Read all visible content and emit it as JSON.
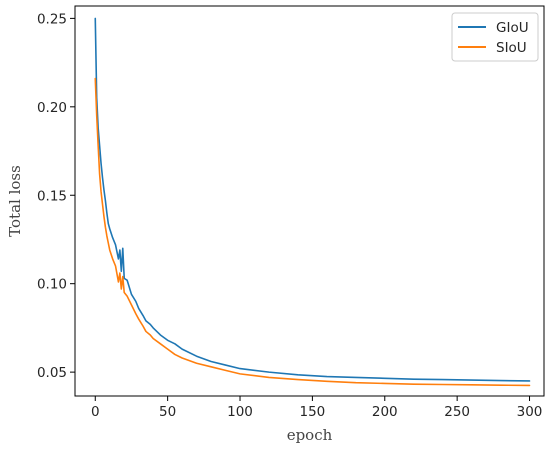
{
  "chart_data": {
    "type": "line",
    "title": "",
    "xlabel": "epoch",
    "ylabel": "Total loss",
    "xlim": [
      -14,
      310
    ],
    "ylim": [
      0.0365,
      0.257
    ],
    "x_ticks": [
      0,
      50,
      100,
      150,
      200,
      250,
      300
    ],
    "y_ticks": [
      0.05,
      0.1,
      0.15,
      0.2,
      0.25
    ],
    "x_tick_labels": [
      "0",
      "50",
      "100",
      "150",
      "200",
      "250",
      "300"
    ],
    "y_tick_labels": [
      "0.05",
      "0.10",
      "0.15",
      "0.20",
      "0.25"
    ],
    "grid": false,
    "legend_position": "top-right",
    "series": [
      {
        "name": "GIoU",
        "color": "#1f77b4",
        "x": [
          0,
          1,
          2,
          3,
          4,
          5,
          6,
          7,
          8,
          9,
          10,
          12,
          14,
          16,
          17,
          18,
          19,
          20,
          22,
          25,
          28,
          30,
          33,
          35,
          38,
          40,
          45,
          50,
          55,
          60,
          70,
          80,
          90,
          100,
          120,
          140,
          160,
          180,
          200,
          220,
          240,
          260,
          280,
          300
        ],
        "values": [
          0.25,
          0.205,
          0.188,
          0.178,
          0.168,
          0.16,
          0.153,
          0.147,
          0.14,
          0.134,
          0.131,
          0.126,
          0.122,
          0.114,
          0.119,
          0.107,
          0.12,
          0.103,
          0.102,
          0.094,
          0.09,
          0.086,
          0.082,
          0.079,
          0.077,
          0.075,
          0.071,
          0.068,
          0.066,
          0.063,
          0.059,
          0.056,
          0.054,
          0.052,
          0.05,
          0.0485,
          0.0475,
          0.047,
          0.0465,
          0.046,
          0.0458,
          0.0455,
          0.0452,
          0.045
        ]
      },
      {
        "name": "SIoU",
        "color": "#ff7f0e",
        "x": [
          0,
          1,
          2,
          3,
          4,
          5,
          6,
          7,
          8,
          9,
          10,
          12,
          14,
          16,
          17,
          18,
          19,
          20,
          22,
          25,
          28,
          30,
          33,
          35,
          38,
          40,
          45,
          50,
          55,
          60,
          70,
          80,
          90,
          100,
          120,
          140,
          160,
          180,
          200,
          220,
          240,
          260,
          280,
          300
        ],
        "values": [
          0.216,
          0.195,
          0.178,
          0.162,
          0.152,
          0.145,
          0.138,
          0.132,
          0.127,
          0.123,
          0.119,
          0.114,
          0.11,
          0.101,
          0.106,
          0.097,
          0.104,
          0.095,
          0.093,
          0.088,
          0.083,
          0.08,
          0.076,
          0.073,
          0.071,
          0.069,
          0.066,
          0.063,
          0.06,
          0.058,
          0.055,
          0.053,
          0.051,
          0.049,
          0.047,
          0.0458,
          0.0448,
          0.044,
          0.0436,
          0.0432,
          0.043,
          0.0428,
          0.0426,
          0.0425
        ]
      }
    ]
  }
}
